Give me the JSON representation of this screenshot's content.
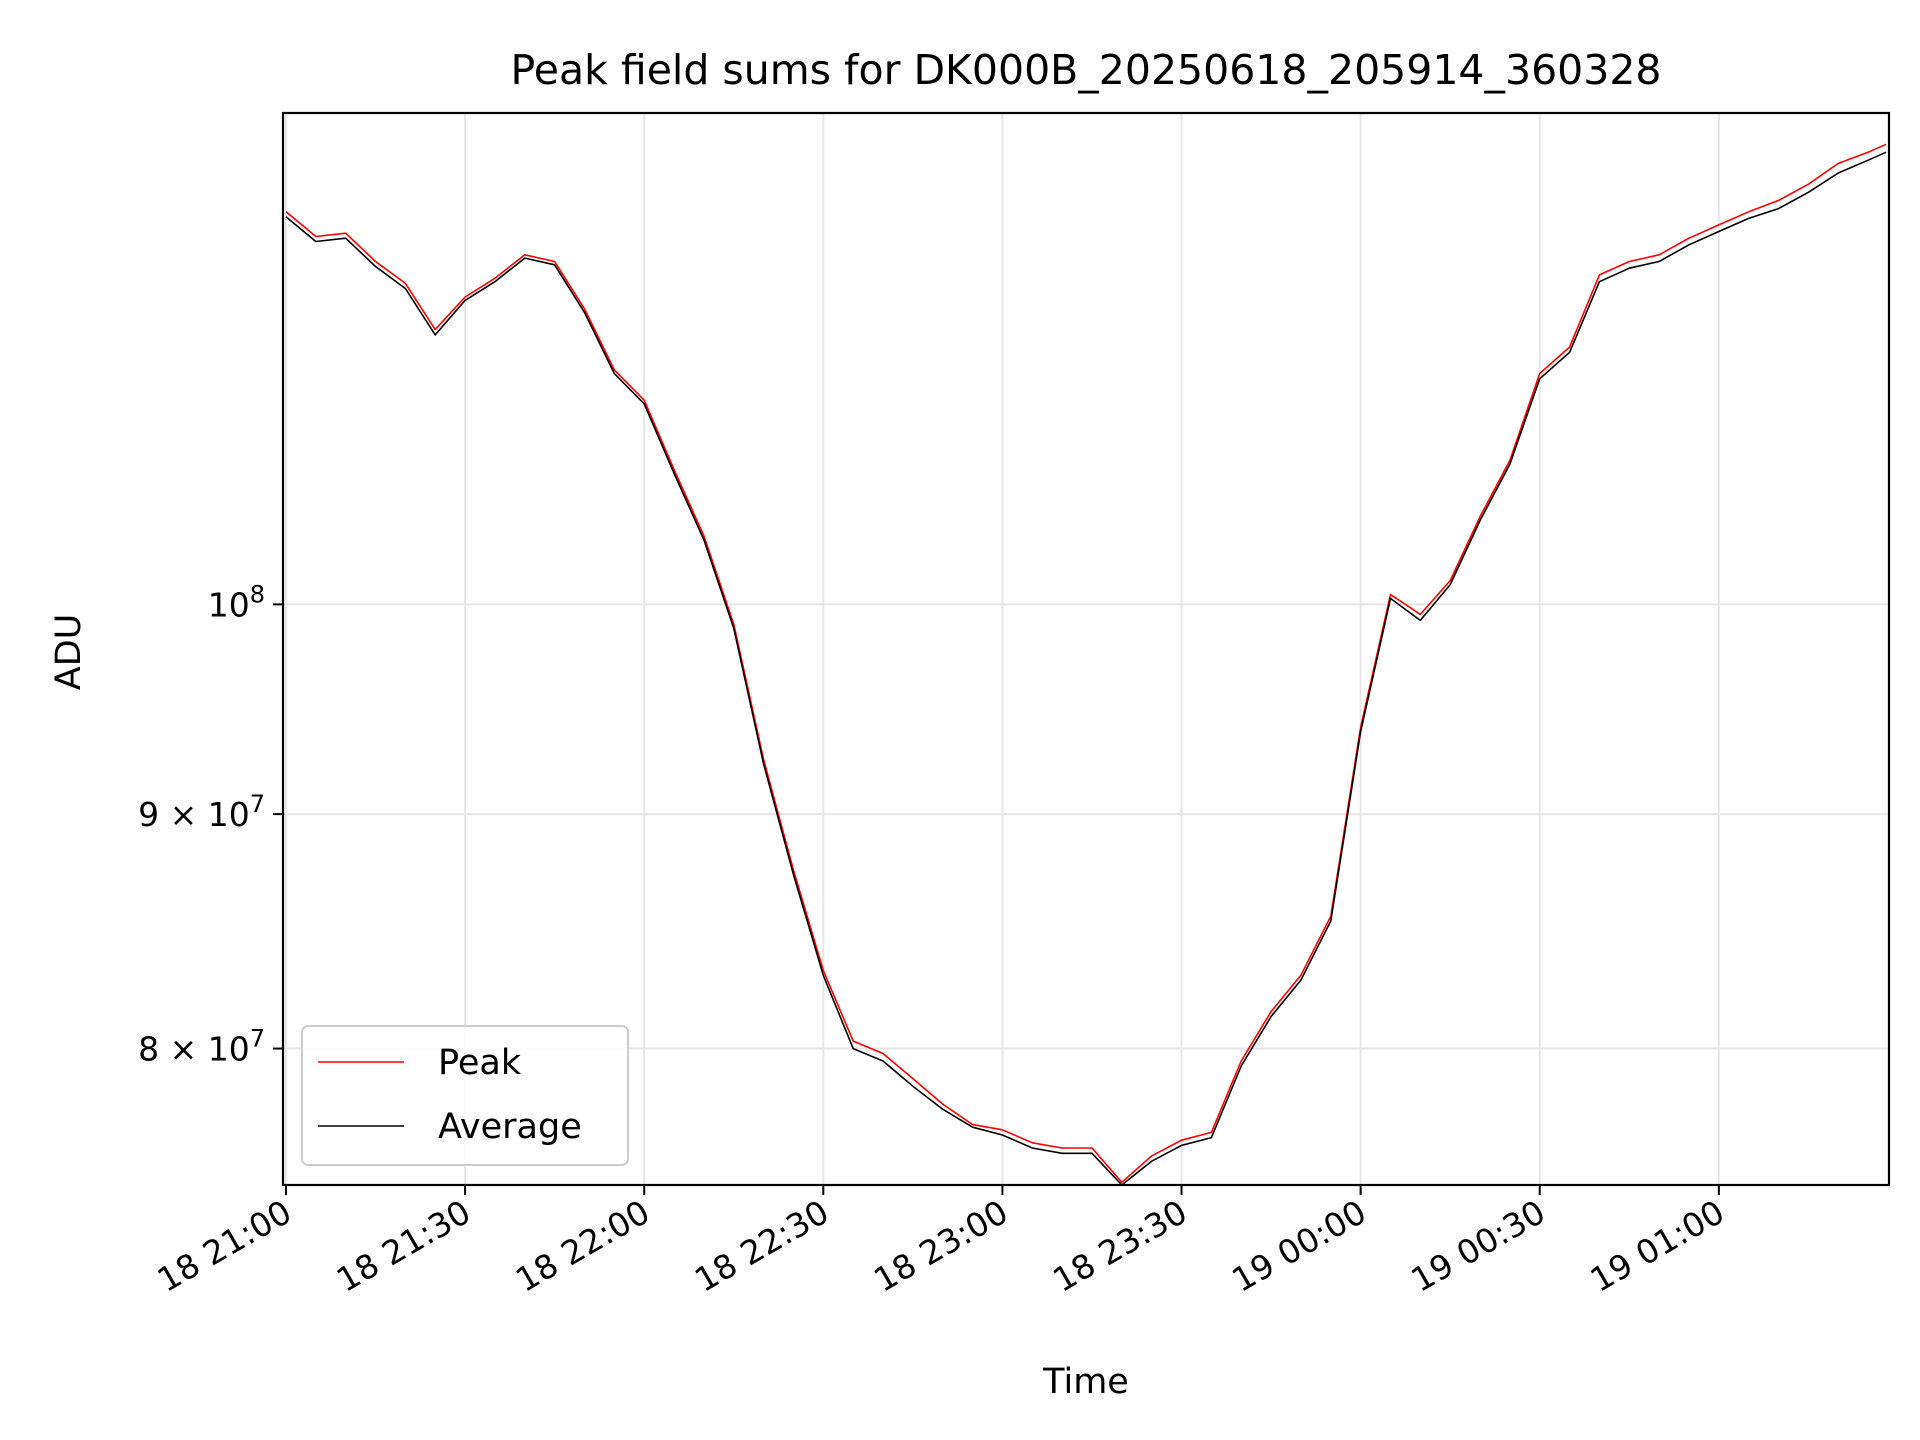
{
  "chart_data": {
    "type": "line",
    "title": "Peak field sums for DK000B_20250618_205914_360328",
    "xlabel": "Time",
    "ylabel": "ADU",
    "y_scale": "log",
    "grid": true,
    "legend_position": "lower-left",
    "x_ticks": [
      "18 21:00",
      "18 21:30",
      "18 22:00",
      "18 22:30",
      "18 23:00",
      "18 23:30",
      "19 00:00",
      "19 00:30",
      "19 01:00"
    ],
    "y_ticks": [
      {
        "value": 100000000,
        "base": "10",
        "exp": "8",
        "mult": ""
      },
      {
        "value": 90000000,
        "base": "10",
        "exp": "7",
        "mult": "9 × "
      },
      {
        "value": 80000000,
        "base": "10",
        "exp": "7",
        "mult": "8 × "
      }
    ],
    "xlim": [
      "2025-06-18 20:59:30",
      "2025-06-19 01:28:30"
    ],
    "ylim": [
      74700000,
      128000000
    ],
    "series": [
      {
        "name": "Peak",
        "color": "#ff0000",
        "points": [
          [
            "2025-06-18 21:00",
            121800000
          ],
          [
            "2025-06-18 21:05",
            120300000
          ],
          [
            "2025-06-18 21:10",
            120500000
          ],
          [
            "2025-06-18 21:15",
            118800000
          ],
          [
            "2025-06-18 21:20",
            117500000
          ],
          [
            "2025-06-18 21:25",
            114800000
          ],
          [
            "2025-06-18 21:30",
            116700000
          ],
          [
            "2025-06-18 21:35",
            117800000
          ],
          [
            "2025-06-18 21:40",
            119200000
          ],
          [
            "2025-06-18 21:45",
            118800000
          ],
          [
            "2025-06-18 21:50",
            116000000
          ],
          [
            "2025-06-18 21:55",
            112500000
          ],
          [
            "2025-06-18 22:00",
            110800000
          ],
          [
            "2025-06-18 22:05",
            107000000
          ],
          [
            "2025-06-18 22:10",
            103500000
          ],
          [
            "2025-06-18 22:15",
            99000000
          ],
          [
            "2025-06-18 22:20",
            92500000
          ],
          [
            "2025-06-18 22:25",
            87500000
          ],
          [
            "2025-06-18 22:30",
            83200000
          ],
          [
            "2025-06-18 22:35",
            80300000
          ],
          [
            "2025-06-18 22:40",
            79800000
          ],
          [
            "2025-06-18 22:45",
            78800000
          ],
          [
            "2025-06-18 22:50",
            77800000
          ],
          [
            "2025-06-18 22:55",
            77000000
          ],
          [
            "2025-06-18 23:00",
            76800000
          ],
          [
            "2025-06-18 23:05",
            76300000
          ],
          [
            "2025-06-18 23:10",
            76100000
          ],
          [
            "2025-06-18 23:15",
            76100000
          ],
          [
            "2025-06-18 23:20",
            74800000
          ],
          [
            "2025-06-18 23:25",
            75800000
          ],
          [
            "2025-06-18 23:30",
            76400000
          ],
          [
            "2025-06-18 23:35",
            76700000
          ],
          [
            "2025-06-18 23:40",
            79500000
          ],
          [
            "2025-06-18 23:45",
            81500000
          ],
          [
            "2025-06-18 23:50",
            83000000
          ],
          [
            "2025-06-18 23:55",
            85500000
          ],
          [
            "2025-06-19 00:00",
            94000000
          ],
          [
            "2025-06-19 00:05",
            100500000
          ],
          [
            "2025-06-19 00:10",
            99500000
          ],
          [
            "2025-06-19 00:15",
            101200000
          ],
          [
            "2025-06-19 00:20",
            104500000
          ],
          [
            "2025-06-19 00:25",
            107500000
          ],
          [
            "2025-06-19 00:30",
            112300000
          ],
          [
            "2025-06-19 00:35",
            113800000
          ],
          [
            "2025-06-19 00:40",
            118000000
          ],
          [
            "2025-06-19 00:45",
            118800000
          ],
          [
            "2025-06-19 00:50",
            119200000
          ],
          [
            "2025-06-19 00:55",
            120200000
          ],
          [
            "2025-06-19 01:00",
            121000000
          ],
          [
            "2025-06-19 01:05",
            121800000
          ],
          [
            "2025-06-19 01:10",
            122500000
          ],
          [
            "2025-06-19 01:15",
            123500000
          ],
          [
            "2025-06-19 01:20",
            124800000
          ],
          [
            "2025-06-19 01:25",
            125500000
          ],
          [
            "2025-06-19 01:28",
            126000000
          ]
        ]
      },
      {
        "name": "Average",
        "color": "#000000",
        "points": [
          [
            "2025-06-18 21:00",
            121500000
          ],
          [
            "2025-06-18 21:05",
            120000000
          ],
          [
            "2025-06-18 21:10",
            120200000
          ],
          [
            "2025-06-18 21:15",
            118500000
          ],
          [
            "2025-06-18 21:20",
            117200000
          ],
          [
            "2025-06-18 21:25",
            114500000
          ],
          [
            "2025-06-18 21:30",
            116500000
          ],
          [
            "2025-06-18 21:35",
            117600000
          ],
          [
            "2025-06-18 21:40",
            119000000
          ],
          [
            "2025-06-18 21:45",
            118600000
          ],
          [
            "2025-06-18 21:50",
            115800000
          ],
          [
            "2025-06-18 21:55",
            112300000
          ],
          [
            "2025-06-18 22:00",
            110600000
          ],
          [
            "2025-06-18 22:05",
            106800000
          ],
          [
            "2025-06-18 22:10",
            103300000
          ],
          [
            "2025-06-18 22:15",
            98800000
          ],
          [
            "2025-06-18 22:20",
            92300000
          ],
          [
            "2025-06-18 22:25",
            87300000
          ],
          [
            "2025-06-18 22:30",
            83000000
          ],
          [
            "2025-06-18 22:35",
            80000000
          ],
          [
            "2025-06-18 22:40",
            79500000
          ],
          [
            "2025-06-18 22:45",
            78500000
          ],
          [
            "2025-06-18 22:50",
            77600000
          ],
          [
            "2025-06-18 22:55",
            76900000
          ],
          [
            "2025-06-18 23:00",
            76600000
          ],
          [
            "2025-06-18 23:05",
            76100000
          ],
          [
            "2025-06-18 23:10",
            75900000
          ],
          [
            "2025-06-18 23:15",
            75900000
          ],
          [
            "2025-06-18 23:20",
            74700000
          ],
          [
            "2025-06-18 23:25",
            75600000
          ],
          [
            "2025-06-18 23:30",
            76200000
          ],
          [
            "2025-06-18 23:35",
            76500000
          ],
          [
            "2025-06-18 23:40",
            79300000
          ],
          [
            "2025-06-18 23:45",
            81300000
          ],
          [
            "2025-06-18 23:50",
            82800000
          ],
          [
            "2025-06-18 23:55",
            85300000
          ],
          [
            "2025-06-19 00:00",
            93800000
          ],
          [
            "2025-06-19 00:05",
            100300000
          ],
          [
            "2025-06-19 00:10",
            99200000
          ],
          [
            "2025-06-19 00:15",
            101000000
          ],
          [
            "2025-06-19 00:20",
            104300000
          ],
          [
            "2025-06-19 00:25",
            107300000
          ],
          [
            "2025-06-19 00:30",
            112000000
          ],
          [
            "2025-06-19 00:35",
            113500000
          ],
          [
            "2025-06-19 00:40",
            117600000
          ],
          [
            "2025-06-19 00:45",
            118400000
          ],
          [
            "2025-06-19 00:50",
            118800000
          ],
          [
            "2025-06-19 00:55",
            119800000
          ],
          [
            "2025-06-19 01:00",
            120600000
          ],
          [
            "2025-06-19 01:05",
            121400000
          ],
          [
            "2025-06-19 01:10",
            122000000
          ],
          [
            "2025-06-19 01:15",
            123000000
          ],
          [
            "2025-06-19 01:20",
            124200000
          ],
          [
            "2025-06-19 01:25",
            125000000
          ],
          [
            "2025-06-19 01:28",
            125500000
          ]
        ]
      }
    ]
  }
}
